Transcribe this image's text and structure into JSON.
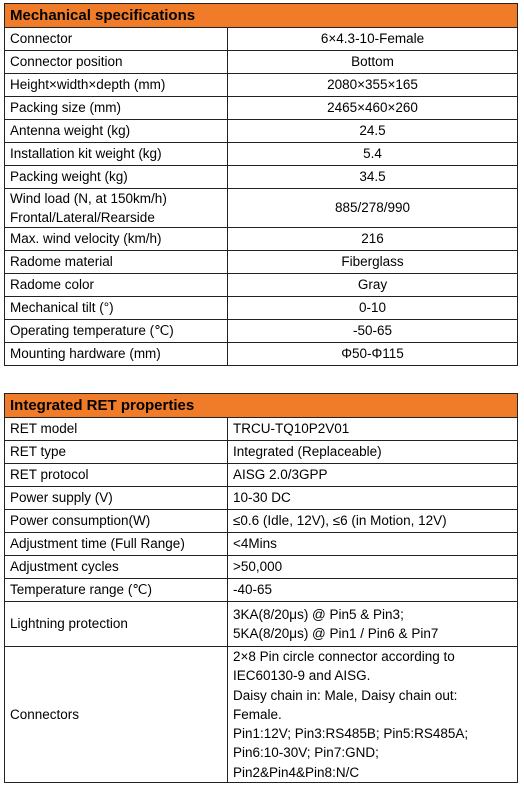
{
  "mechanical": {
    "title": "Mechanical specifications",
    "rows": [
      {
        "label": "Connector",
        "value": "6×4.3-10-Female"
      },
      {
        "label": "Connector position",
        "value": "Bottom"
      },
      {
        "label": "Height×width×depth (mm)",
        "value": "2080×355×165"
      },
      {
        "label": "Packing size (mm)",
        "value": "2465×460×260"
      },
      {
        "label": "Antenna weight (kg)",
        "value": "24.5"
      },
      {
        "label": "Installation kit weight (kg)",
        "value": "5.4"
      },
      {
        "label": "Packing weight (kg)",
        "value": "34.5"
      },
      {
        "label_lines": [
          "Wind load (N, at 150km/h)",
          "Frontal/Lateral/Rearside"
        ],
        "value": "885/278/990"
      },
      {
        "label": "Max. wind velocity (km/h)",
        "value": "216"
      },
      {
        "label": "Radome material",
        "value": "Fiberglass"
      },
      {
        "label": "Radome color",
        "value": "Gray"
      },
      {
        "label": "Mechanical tilt (°)",
        "value": "0-10"
      },
      {
        "label": "Operating temperature (℃)",
        "value": "-50-65"
      },
      {
        "label": "Mounting hardware (mm)",
        "value": "Φ50-Φ115"
      }
    ]
  },
  "ret": {
    "title": "Integrated RET properties",
    "rows": [
      {
        "label": "RET model",
        "value": "TRCU-TQ10P2V01"
      },
      {
        "label": "RET type",
        "value": "Integrated (Replaceable)"
      },
      {
        "label": "RET protocol",
        "value": "AISG 2.0/3GPP"
      },
      {
        "label": "Power supply (V)",
        "value": "10-30 DC"
      },
      {
        "label": "Power consumption(W)",
        "value": "≤0.6 (Idle, 12V), ≤6 (in Motion, 12V)"
      },
      {
        "label": "Adjustment time (Full Range)",
        "value": "<4Mins"
      },
      {
        "label": "Adjustment cycles",
        "value": ">50,000"
      },
      {
        "label": "Temperature range (℃)",
        "value": "-40-65"
      },
      {
        "label": "Lightning protection",
        "value_lines": [
          "3KA(8/20μs) @ Pin5 & Pin3;",
          "5KA(8/20μs) @ Pin1 / Pin6 & Pin7"
        ]
      },
      {
        "label": "Connectors",
        "value_lines": [
          "2×8 Pin circle connector according to",
          "IEC60130-9 and AISG.",
          "Daisy chain in: Male, Daisy chain out:",
          "Female.",
          "Pin1:12V; Pin3:RS485B; Pin5:RS485A;",
          "Pin6:10-30V; Pin7:GND;",
          "Pin2&Pin4&Pin8:N/C"
        ]
      }
    ]
  }
}
